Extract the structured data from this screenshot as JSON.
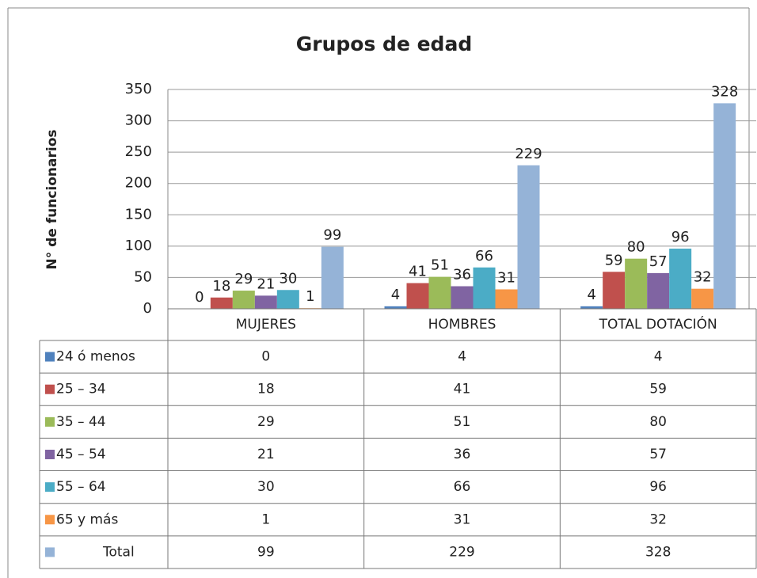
{
  "chart_data": {
    "type": "bar",
    "title": "Grupos de edad",
    "y_label": "N° de funcionarios",
    "categories": [
      "MUJERES",
      "HOMBRES",
      "TOTAL DOTACIÓN"
    ],
    "series": [
      {
        "name": "24 ó menos",
        "color": "#4f81bd",
        "values": [
          0,
          4,
          4
        ]
      },
      {
        "name": "25 – 34",
        "color": "#c0504d",
        "values": [
          18,
          41,
          59
        ]
      },
      {
        "name": "35 – 44",
        "color": "#9bbb59",
        "values": [
          29,
          51,
          80
        ]
      },
      {
        "name": "45 – 54",
        "color": "#8064a2",
        "values": [
          21,
          36,
          57
        ]
      },
      {
        "name": "55 – 64",
        "color": "#4bacc6",
        "values": [
          30,
          66,
          96
        ]
      },
      {
        "name": "65 y más",
        "color": "#f79646",
        "values": [
          1,
          31,
          32
        ]
      },
      {
        "name": "Total",
        "color": "#95b3d7",
        "values": [
          99,
          229,
          328
        ]
      }
    ],
    "ylim": [
      0,
      350
    ],
    "yticks": [
      0,
      50,
      100,
      150,
      200,
      250,
      300,
      350
    ],
    "grid": true
  }
}
